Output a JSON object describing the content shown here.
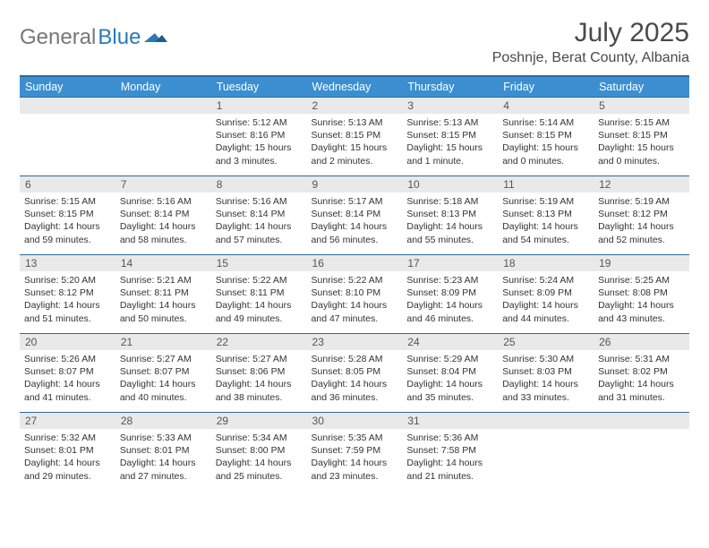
{
  "brand": {
    "word1": "General",
    "word2": "Blue"
  },
  "title": "July 2025",
  "location": "Poshnje, Berat County, Albania",
  "dow_header_bg": "#3b8fd1",
  "border_color": "#2a6aa0",
  "daynum_bg": "#e9e9e9",
  "days_of_week": [
    "Sunday",
    "Monday",
    "Tuesday",
    "Wednesday",
    "Thursday",
    "Friday",
    "Saturday"
  ],
  "weeks": [
    [
      {
        "n": "",
        "sunrise": "",
        "sunset": "",
        "daylight": ""
      },
      {
        "n": "",
        "sunrise": "",
        "sunset": "",
        "daylight": ""
      },
      {
        "n": "1",
        "sunrise": "Sunrise: 5:12 AM",
        "sunset": "Sunset: 8:16 PM",
        "daylight": "Daylight: 15 hours and 3 minutes."
      },
      {
        "n": "2",
        "sunrise": "Sunrise: 5:13 AM",
        "sunset": "Sunset: 8:15 PM",
        "daylight": "Daylight: 15 hours and 2 minutes."
      },
      {
        "n": "3",
        "sunrise": "Sunrise: 5:13 AM",
        "sunset": "Sunset: 8:15 PM",
        "daylight": "Daylight: 15 hours and 1 minute."
      },
      {
        "n": "4",
        "sunrise": "Sunrise: 5:14 AM",
        "sunset": "Sunset: 8:15 PM",
        "daylight": "Daylight: 15 hours and 0 minutes."
      },
      {
        "n": "5",
        "sunrise": "Sunrise: 5:15 AM",
        "sunset": "Sunset: 8:15 PM",
        "daylight": "Daylight: 15 hours and 0 minutes."
      }
    ],
    [
      {
        "n": "6",
        "sunrise": "Sunrise: 5:15 AM",
        "sunset": "Sunset: 8:15 PM",
        "daylight": "Daylight: 14 hours and 59 minutes."
      },
      {
        "n": "7",
        "sunrise": "Sunrise: 5:16 AM",
        "sunset": "Sunset: 8:14 PM",
        "daylight": "Daylight: 14 hours and 58 minutes."
      },
      {
        "n": "8",
        "sunrise": "Sunrise: 5:16 AM",
        "sunset": "Sunset: 8:14 PM",
        "daylight": "Daylight: 14 hours and 57 minutes."
      },
      {
        "n": "9",
        "sunrise": "Sunrise: 5:17 AM",
        "sunset": "Sunset: 8:14 PM",
        "daylight": "Daylight: 14 hours and 56 minutes."
      },
      {
        "n": "10",
        "sunrise": "Sunrise: 5:18 AM",
        "sunset": "Sunset: 8:13 PM",
        "daylight": "Daylight: 14 hours and 55 minutes."
      },
      {
        "n": "11",
        "sunrise": "Sunrise: 5:19 AM",
        "sunset": "Sunset: 8:13 PM",
        "daylight": "Daylight: 14 hours and 54 minutes."
      },
      {
        "n": "12",
        "sunrise": "Sunrise: 5:19 AM",
        "sunset": "Sunset: 8:12 PM",
        "daylight": "Daylight: 14 hours and 52 minutes."
      }
    ],
    [
      {
        "n": "13",
        "sunrise": "Sunrise: 5:20 AM",
        "sunset": "Sunset: 8:12 PM",
        "daylight": "Daylight: 14 hours and 51 minutes."
      },
      {
        "n": "14",
        "sunrise": "Sunrise: 5:21 AM",
        "sunset": "Sunset: 8:11 PM",
        "daylight": "Daylight: 14 hours and 50 minutes."
      },
      {
        "n": "15",
        "sunrise": "Sunrise: 5:22 AM",
        "sunset": "Sunset: 8:11 PM",
        "daylight": "Daylight: 14 hours and 49 minutes."
      },
      {
        "n": "16",
        "sunrise": "Sunrise: 5:22 AM",
        "sunset": "Sunset: 8:10 PM",
        "daylight": "Daylight: 14 hours and 47 minutes."
      },
      {
        "n": "17",
        "sunrise": "Sunrise: 5:23 AM",
        "sunset": "Sunset: 8:09 PM",
        "daylight": "Daylight: 14 hours and 46 minutes."
      },
      {
        "n": "18",
        "sunrise": "Sunrise: 5:24 AM",
        "sunset": "Sunset: 8:09 PM",
        "daylight": "Daylight: 14 hours and 44 minutes."
      },
      {
        "n": "19",
        "sunrise": "Sunrise: 5:25 AM",
        "sunset": "Sunset: 8:08 PM",
        "daylight": "Daylight: 14 hours and 43 minutes."
      }
    ],
    [
      {
        "n": "20",
        "sunrise": "Sunrise: 5:26 AM",
        "sunset": "Sunset: 8:07 PM",
        "daylight": "Daylight: 14 hours and 41 minutes."
      },
      {
        "n": "21",
        "sunrise": "Sunrise: 5:27 AM",
        "sunset": "Sunset: 8:07 PM",
        "daylight": "Daylight: 14 hours and 40 minutes."
      },
      {
        "n": "22",
        "sunrise": "Sunrise: 5:27 AM",
        "sunset": "Sunset: 8:06 PM",
        "daylight": "Daylight: 14 hours and 38 minutes."
      },
      {
        "n": "23",
        "sunrise": "Sunrise: 5:28 AM",
        "sunset": "Sunset: 8:05 PM",
        "daylight": "Daylight: 14 hours and 36 minutes."
      },
      {
        "n": "24",
        "sunrise": "Sunrise: 5:29 AM",
        "sunset": "Sunset: 8:04 PM",
        "daylight": "Daylight: 14 hours and 35 minutes."
      },
      {
        "n": "25",
        "sunrise": "Sunrise: 5:30 AM",
        "sunset": "Sunset: 8:03 PM",
        "daylight": "Daylight: 14 hours and 33 minutes."
      },
      {
        "n": "26",
        "sunrise": "Sunrise: 5:31 AM",
        "sunset": "Sunset: 8:02 PM",
        "daylight": "Daylight: 14 hours and 31 minutes."
      }
    ],
    [
      {
        "n": "27",
        "sunrise": "Sunrise: 5:32 AM",
        "sunset": "Sunset: 8:01 PM",
        "daylight": "Daylight: 14 hours and 29 minutes."
      },
      {
        "n": "28",
        "sunrise": "Sunrise: 5:33 AM",
        "sunset": "Sunset: 8:01 PM",
        "daylight": "Daylight: 14 hours and 27 minutes."
      },
      {
        "n": "29",
        "sunrise": "Sunrise: 5:34 AM",
        "sunset": "Sunset: 8:00 PM",
        "daylight": "Daylight: 14 hours and 25 minutes."
      },
      {
        "n": "30",
        "sunrise": "Sunrise: 5:35 AM",
        "sunset": "Sunset: 7:59 PM",
        "daylight": "Daylight: 14 hours and 23 minutes."
      },
      {
        "n": "31",
        "sunrise": "Sunrise: 5:36 AM",
        "sunset": "Sunset: 7:58 PM",
        "daylight": "Daylight: 14 hours and 21 minutes."
      },
      {
        "n": "",
        "sunrise": "",
        "sunset": "",
        "daylight": ""
      },
      {
        "n": "",
        "sunrise": "",
        "sunset": "",
        "daylight": ""
      }
    ]
  ]
}
